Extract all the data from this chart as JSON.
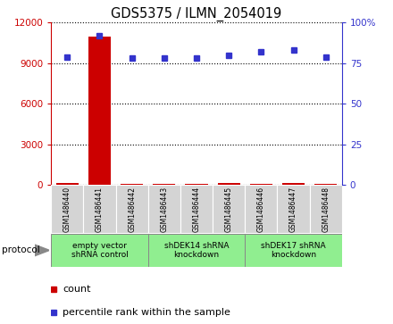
{
  "title": "GDS5375 / ILMN_2054019",
  "samples": [
    "GSM1486440",
    "GSM1486441",
    "GSM1486442",
    "GSM1486443",
    "GSM1486444",
    "GSM1486445",
    "GSM1486446",
    "GSM1486447",
    "GSM1486448"
  ],
  "counts": [
    100,
    11000,
    80,
    70,
    90,
    100,
    80,
    120,
    85
  ],
  "percentile_ranks": [
    79,
    92,
    78,
    78,
    78,
    80,
    82,
    83,
    79
  ],
  "ylim_left": [
    0,
    12000
  ],
  "ylim_right": [
    0,
    100
  ],
  "yticks_left": [
    0,
    3000,
    6000,
    9000,
    12000
  ],
  "ytick_labels_right": [
    "0",
    "25",
    "50",
    "75",
    "100%"
  ],
  "groups": [
    {
      "label": "empty vector\nshRNA control",
      "start": 0,
      "end": 3
    },
    {
      "label": "shDEK14 shRNA\nknockdown",
      "start": 3,
      "end": 6
    },
    {
      "label": "shDEK17 shRNA\nknockdown",
      "start": 6,
      "end": 9
    }
  ],
  "bar_color": "#CC0000",
  "dot_color": "#3333CC",
  "count_label": "count",
  "percentile_label": "percentile rank within the sample",
  "protocol_label": "protocol",
  "cell_bg": "#d4d4d4",
  "group_bg": "#90EE90",
  "group_border": "#888888"
}
